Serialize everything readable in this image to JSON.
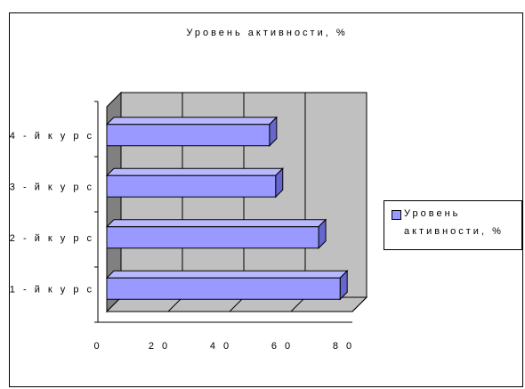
{
  "chart_data": {
    "type": "bar",
    "orientation": "horizontal",
    "style": "3d",
    "title": "Уровень активности, %",
    "categories": [
      "1-й курс",
      "2-й курс",
      "3-й курс",
      "4-й курс"
    ],
    "category_labels": [
      "1 - й  к у р с",
      "2 - й  к у р с",
      "3 - й  к у р с",
      "4 - й  к у р с"
    ],
    "series": [
      {
        "name": "Уровень активности, %",
        "values": [
          76,
          69,
          55,
          53
        ],
        "color": "#9999ff"
      }
    ],
    "xlim": [
      0,
      80
    ],
    "xticks": [
      0,
      20,
      40,
      60,
      80
    ],
    "xtick_labels": [
      "0",
      "2 0",
      "4 0",
      "6 0",
      "8 0"
    ],
    "xlabel": "",
    "ylabel": "",
    "grid": true,
    "legend_position": "right",
    "wall_color": "#c0c0c0",
    "side_wall_color": "#808080",
    "floor_color": "#c0c0c0"
  }
}
